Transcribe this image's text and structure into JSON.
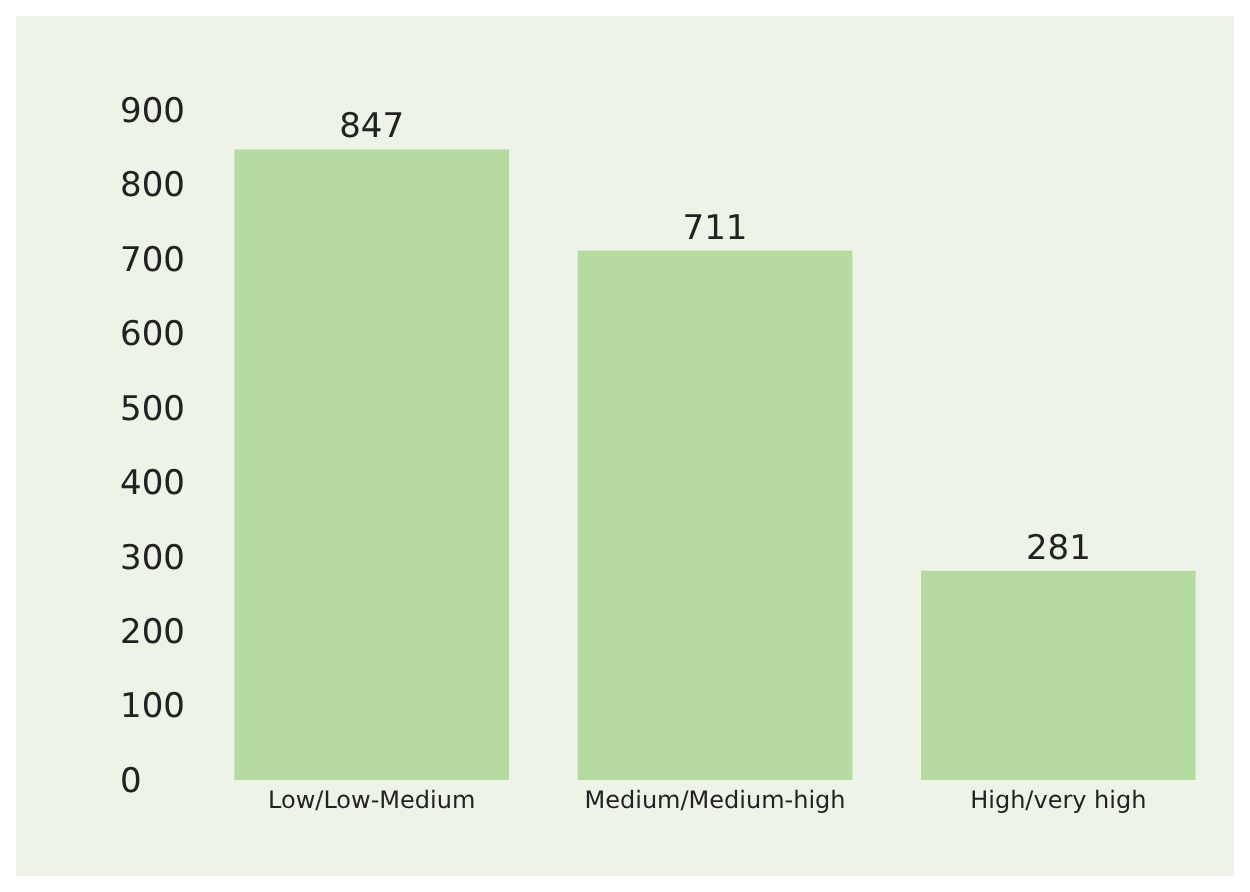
{
  "chart_data": {
    "type": "bar",
    "categories": [
      "Low/Low-Medium",
      "Medium/Medium-high",
      "High/very high"
    ],
    "values": [
      847,
      711,
      281
    ],
    "color": "#b5dba0",
    "ylim": [
      0,
      900
    ],
    "yticks": [
      0,
      100,
      200,
      300,
      400,
      500,
      600,
      700,
      800,
      900
    ],
    "data_labels": true,
    "grid": false
  }
}
